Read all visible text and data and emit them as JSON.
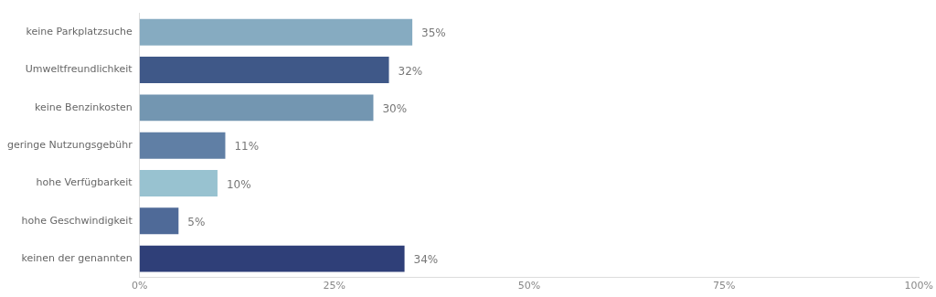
{
  "chart_data": {
    "type": "bar",
    "orientation": "horizontal",
    "categories": [
      "keine Parkplatzsuche",
      "Umweltfreundlichkeit",
      "keine Benzinkosten",
      "geringe Nutzungsgebühr",
      "hohe Verfügbarkeit",
      "hohe Geschwindigkeit",
      "keinen der genannten"
    ],
    "values": [
      35,
      32,
      30,
      11,
      10,
      5,
      34
    ],
    "colors": [
      "#86abc1",
      "#3f5888",
      "#7396b1",
      "#607fa5",
      "#98c2d0",
      "#4f6a98",
      "#2f3f78"
    ],
    "value_labels": [
      "35%",
      "32%",
      "30%",
      "11%",
      "10%",
      "5%",
      "34%"
    ],
    "xlim": [
      0,
      100
    ],
    "xticks": [
      {
        "value": 0,
        "label": "0%"
      },
      {
        "value": 25,
        "label": "25%"
      },
      {
        "value": 50,
        "label": "50%"
      },
      {
        "value": 75,
        "label": "75%"
      },
      {
        "value": 100,
        "label": "100%"
      }
    ],
    "grid": false,
    "legend": false
  }
}
